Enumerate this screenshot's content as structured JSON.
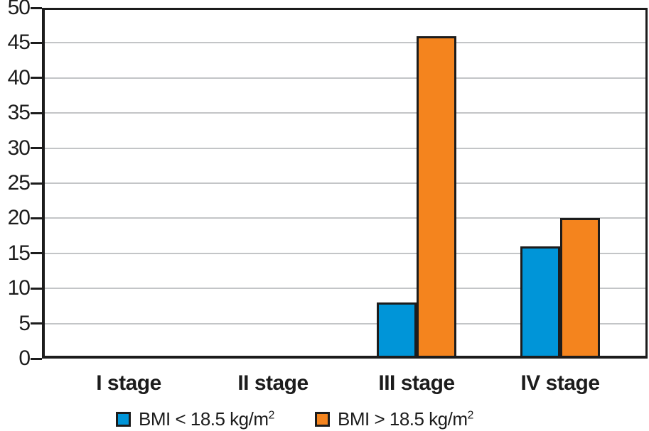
{
  "chart_data": {
    "type": "bar",
    "title": "",
    "categories": [
      "I stage",
      "II stage",
      "III stage",
      "IV stage"
    ],
    "series": [
      {
        "name": "BMI < 18.5 kg/m²",
        "label_base": "BMI < 18.5 kg/m",
        "label_sup": "2",
        "color": "#0095d8",
        "values": [
          0,
          0,
          8,
          16
        ]
      },
      {
        "name": "BMI > 18.5 kg/m²",
        "label_base": "BMI > 18.5 kg/m",
        "label_sup": "2",
        "color": "#f4841e",
        "values": [
          0,
          0,
          46,
          20
        ]
      }
    ],
    "ylim": [
      0,
      50
    ],
    "yticks": [
      0,
      5,
      10,
      15,
      20,
      25,
      30,
      35,
      40,
      45,
      50
    ],
    "xlabel": "",
    "ylabel": "",
    "grid": true,
    "grid_color": "#c3c5c7",
    "axis_color": "#1c1c1c",
    "bar_border_color": "#1c1c1c",
    "legend_position": "bottom"
  }
}
